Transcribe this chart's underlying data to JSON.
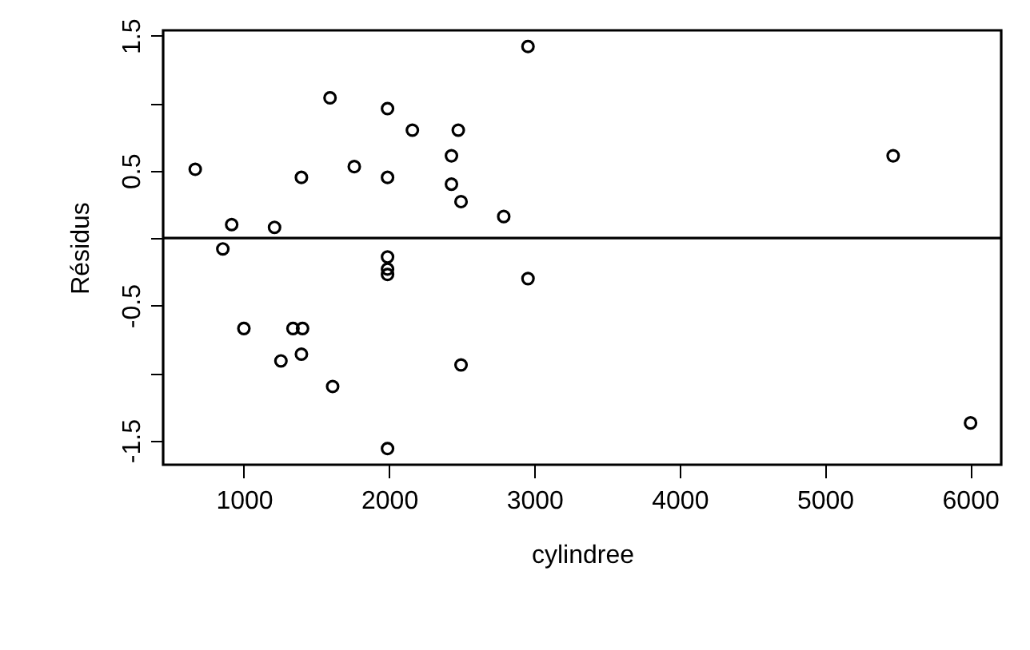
{
  "chart_data": {
    "type": "scatter",
    "xlabel": "cylindree",
    "ylabel": "Résidus",
    "x": [
      2956,
      1593,
      1989,
      2160,
      2476,
      2429,
      665,
      1760,
      1396,
      1989,
      2429,
      2495,
      2789,
      916,
      1211,
      855,
      1989,
      1989,
      1989,
      2956,
      1000,
      1338,
      1404,
      1255,
      1396,
      2495,
      1611,
      1989,
      5470,
      6003
    ],
    "series": [
      {
        "color": "#000000",
        "values": [
          1.42,
          1.04,
          0.96,
          0.8,
          0.8,
          0.61,
          0.51,
          0.53,
          0.45,
          0.45,
          0.4,
          0.27,
          0.16,
          0.1,
          0.08,
          -0.08,
          -0.14,
          -0.23,
          -0.27,
          -0.3,
          -0.67,
          -0.67,
          -0.67,
          -0.91,
          -0.86,
          -0.94,
          -1.1,
          -1.56,
          0.61,
          -1.37
        ]
      }
    ],
    "xlim": [
      444,
      6214
    ],
    "ylim": [
      -1.68,
      1.54
    ],
    "xticks": [
      1000,
      2000,
      3000,
      4000,
      5000,
      6000
    ],
    "yticks": [
      {
        "value": -1.5,
        "label": "-1.5"
      },
      {
        "value": -1,
        "label": null
      },
      {
        "value": -0.5,
        "label": "-0.5"
      },
      {
        "value": 0,
        "label": null
      },
      {
        "value": 0.5,
        "label": "0.5"
      },
      {
        "value": 1,
        "label": null
      },
      {
        "value": 1.5,
        "label": "1.5"
      }
    ],
    "ref_lines": [
      {
        "axis": "y",
        "value": 0,
        "color": "#000000",
        "line_style": "solid"
      }
    ],
    "marker": "circle",
    "grid": false
  }
}
